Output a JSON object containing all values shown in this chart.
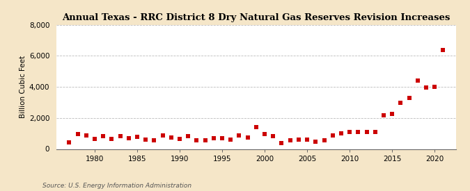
{
  "title": "Annual Texas - RRC District 8 Dry Natural Gas Reserves Revision Increases",
  "ylabel": "Billion Cubic Feet",
  "source": "Source: U.S. Energy Information Administration",
  "background_color": "#f5e6c8",
  "plot_bg_color": "#ffffff",
  "marker_color": "#cc0000",
  "years": [
    1977,
    1978,
    1979,
    1980,
    1981,
    1982,
    1983,
    1984,
    1985,
    1986,
    1987,
    1988,
    1989,
    1990,
    1991,
    1992,
    1993,
    1994,
    1995,
    1996,
    1997,
    1998,
    1999,
    2000,
    2001,
    2002,
    2003,
    2004,
    2005,
    2006,
    2007,
    2008,
    2009,
    2010,
    2011,
    2012,
    2013,
    2014,
    2015,
    2016,
    2017,
    2018,
    2019,
    2020,
    2021
  ],
  "values": [
    430,
    970,
    870,
    660,
    830,
    670,
    820,
    690,
    800,
    600,
    560,
    880,
    760,
    670,
    830,
    570,
    560,
    700,
    700,
    620,
    860,
    740,
    1400,
    940,
    830,
    370,
    570,
    620,
    590,
    480,
    570,
    870,
    1020,
    1080,
    1100,
    1100,
    1100,
    2150,
    2260,
    2980,
    3280,
    4400,
    3970,
    4020,
    6400
  ],
  "ylim": [
    0,
    8000
  ],
  "yticks": [
    0,
    2000,
    4000,
    6000,
    8000
  ],
  "ytick_labels": [
    "0",
    "2,000",
    "4,000",
    "6,000",
    "8,000"
  ],
  "xlim": [
    1975.5,
    2022.5
  ],
  "xticks": [
    1980,
    1985,
    1990,
    1995,
    2000,
    2005,
    2010,
    2015,
    2020
  ],
  "title_fontsize": 9.5,
  "ylabel_fontsize": 7.5,
  "tick_fontsize": 7.5,
  "source_fontsize": 6.5,
  "marker_size": 4.0,
  "grid_color": "#bbbbbb",
  "grid_linestyle": "--",
  "grid_linewidth": 0.6
}
